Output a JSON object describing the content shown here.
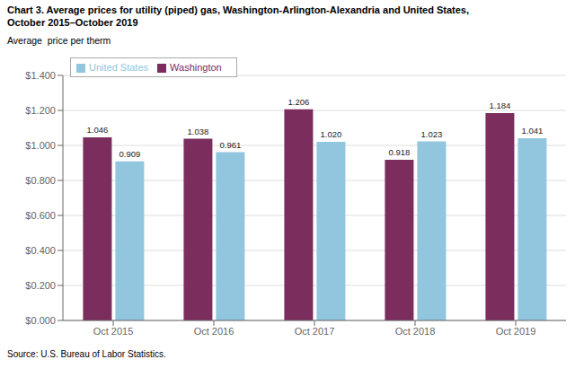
{
  "chart_data": {
    "type": "bar",
    "title": "Chart 3. Average prices for utility (piped) gas, Washington-Arlington-Alexandria and United States,",
    "subtitle": "October 2015–October 2019",
    "y_label": "Average  price per therm",
    "annotations": [
      "Source: U.S. Bureau of Labor Statistics."
    ],
    "categories": [
      "Oct 2015",
      "Oct 2016",
      "Oct 2017",
      "Oct 2018",
      "Oct 2019"
    ],
    "series": [
      {
        "name": "Washington",
        "color": "#7B2D5E",
        "values": [
          1.046,
          1.038,
          1.206,
          0.918,
          1.184
        ]
      },
      {
        "name": "United States",
        "color": "#92C5DE",
        "values": [
          0.909,
          0.961,
          1.02,
          1.023,
          1.041
        ],
        "value_labels": [
          "0.909",
          "0.961",
          "1.020",
          "1.023",
          "1.041"
        ]
      }
    ],
    "ylim": [
      0,
      1.4
    ],
    "yticks": [
      {
        "value": 0.0,
        "label": "$0.000"
      },
      {
        "value": 0.2,
        "label": "$0.200"
      },
      {
        "value": 0.4,
        "label": "$0.400"
      },
      {
        "value": 0.6,
        "label": "$0.600"
      },
      {
        "value": 0.8,
        "label": "$0.800"
      },
      {
        "value": 1.0,
        "label": "$1.000"
      },
      {
        "value": 1.2,
        "label": "$1.200"
      },
      {
        "value": 1.4,
        "label": "$1.400"
      }
    ],
    "grid": true,
    "legend": "upper left",
    "data_labels": true
  }
}
